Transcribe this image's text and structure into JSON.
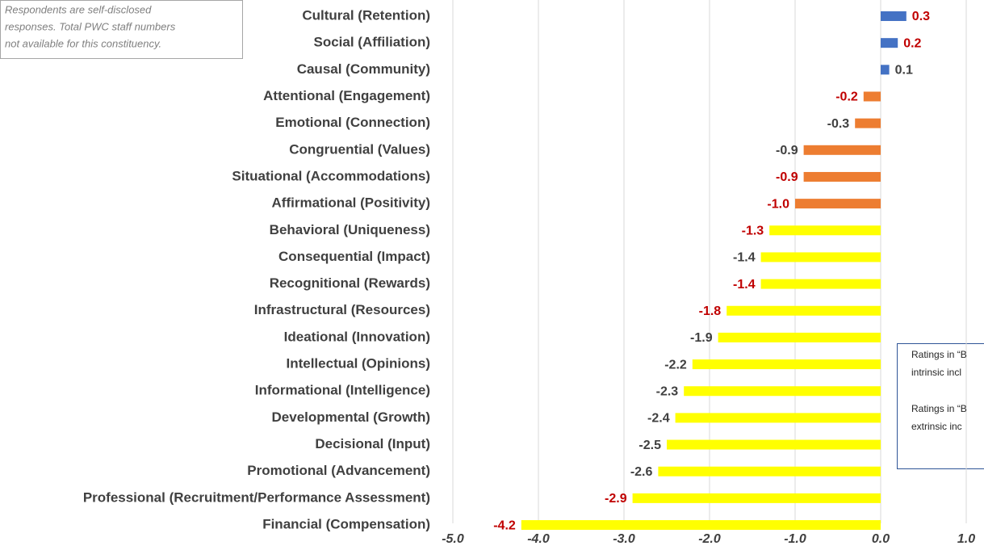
{
  "chart_data": {
    "type": "bar",
    "orientation": "horizontal",
    "categories": [
      "Cultural (Retention)",
      "Social (Affiliation)",
      "Causal (Community)",
      "Attentional (Engagement)",
      "Emotional (Connection)",
      "Congruential (Values)",
      "Situational (Accommodations)",
      "Affirmational (Positivity)",
      "Behavioral (Uniqueness)",
      "Consequential (Impact)",
      "Recognitional (Rewards)",
      "Infrastructural (Resources)",
      "Ideational (Innovation)",
      "Intellectual (Opinions)",
      "Informational (Intelligence)",
      "Developmental (Growth)",
      "Decisional (Input)",
      "Promotional (Advancement)",
      "Professional (Recruitment/Performance Assessment)",
      "Financial (Compensation)"
    ],
    "values": [
      0.3,
      0.2,
      0.1,
      -0.2,
      -0.3,
      -0.9,
      -0.9,
      -1.0,
      -1.3,
      -1.4,
      -1.4,
      -1.8,
      -1.9,
      -2.2,
      -2.3,
      -2.4,
      -2.5,
      -2.6,
      -2.9,
      -4.2
    ],
    "value_labels": [
      "0.3",
      "0.2",
      "0.1",
      "-0.2",
      "-0.3",
      "-0.9",
      "-0.9",
      "-1.0",
      "-1.3",
      "-1.4",
      "-1.4",
      "-1.8",
      "-1.9",
      "-2.2",
      "-2.3",
      "-2.4",
      "-2.5",
      "-2.6",
      "-2.9",
      "-4.2"
    ],
    "colors": [
      "#4472c4",
      "#4472c4",
      "#4472c4",
      "#ed7d31",
      "#ed7d31",
      "#ed7d31",
      "#ed7d31",
      "#ed7d31",
      "#ffff00",
      "#ffff00",
      "#ffff00",
      "#ffff00",
      "#ffff00",
      "#ffff00",
      "#ffff00",
      "#ffff00",
      "#ffff00",
      "#ffff00",
      "#ffff00",
      "#ffff00"
    ],
    "label_colors": [
      "#c00000",
      "#c00000",
      "#404040",
      "#c00000",
      "#404040",
      "#404040",
      "#c00000",
      "#c00000",
      "#c00000",
      "#404040",
      "#c00000",
      "#c00000",
      "#404040",
      "#404040",
      "#404040",
      "#404040",
      "#404040",
      "#404040",
      "#c00000",
      "#c00000"
    ],
    "xlim": [
      -5.0,
      1.2
    ],
    "xticks": [
      {
        "value": -5,
        "label": "-5.0"
      },
      {
        "value": -4,
        "label": "-4.0"
      },
      {
        "value": -3,
        "label": "-3.0"
      },
      {
        "value": -2,
        "label": "-2.0"
      },
      {
        "value": -1,
        "label": "-1.0"
      },
      {
        "value": 0,
        "label": "0.0"
      },
      {
        "value": 1,
        "label": "1.0"
      }
    ],
    "grid": true,
    "note": [
      "Respondents are self-disclosed",
      "responses. Total PWC staff numbers",
      "not available for this constituency."
    ],
    "legend_note": [
      "Ratings in “B",
      "intrinsic incl",
      "Ratings in “B",
      "extrinsic inc"
    ]
  }
}
